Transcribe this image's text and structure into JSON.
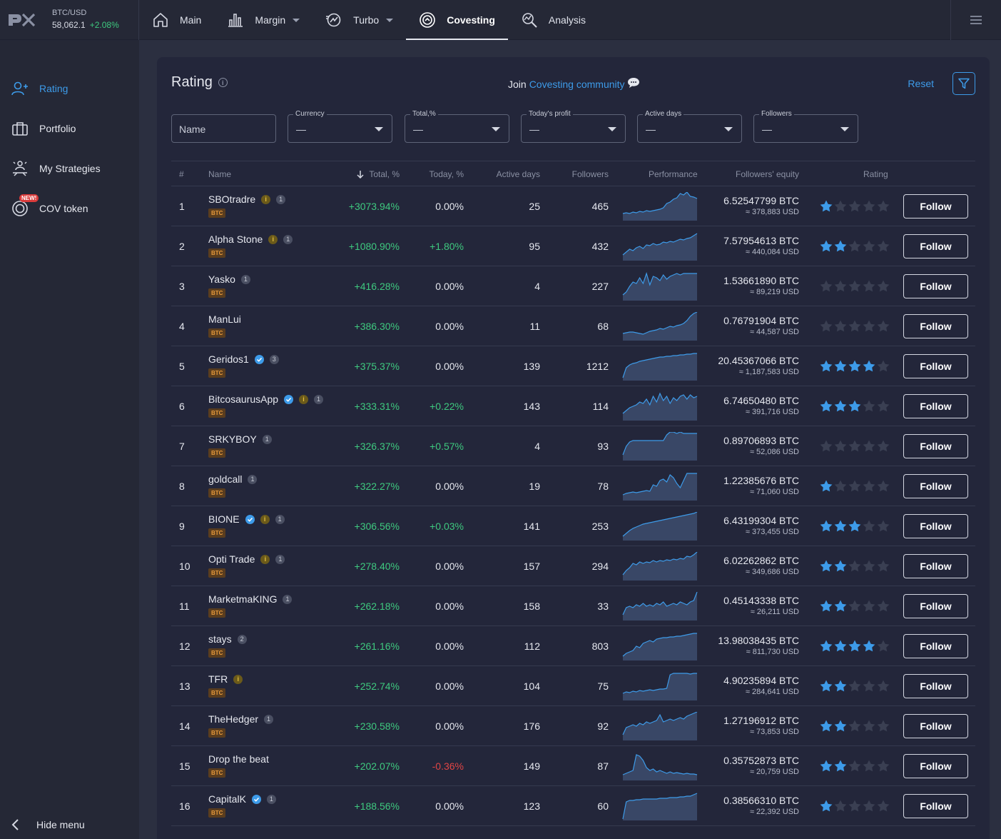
{
  "ticker": {
    "symbol": "BTC/USD",
    "price": "58,062.1",
    "change": "+2.08%"
  },
  "nav": [
    {
      "label": "Main",
      "icon": "home-icon",
      "caret": false,
      "active": false
    },
    {
      "label": "Margin",
      "icon": "bar-chart-icon",
      "caret": true,
      "active": false
    },
    {
      "label": "Turbo",
      "icon": "turbo-icon",
      "caret": true,
      "active": false
    },
    {
      "label": "Covesting",
      "icon": "covesting-icon",
      "caret": false,
      "active": true
    },
    {
      "label": "Analysis",
      "icon": "analysis-icon",
      "caret": false,
      "active": false
    }
  ],
  "sidebar": {
    "items": [
      {
        "label": "Rating",
        "icon": "user-rating-icon",
        "active": true
      },
      {
        "label": "Portfolio",
        "icon": "briefcase-icon",
        "active": false
      },
      {
        "label": "My Strategies",
        "icon": "strategies-icon",
        "active": false
      },
      {
        "label": "COV token",
        "icon": "cov-token-icon",
        "active": false,
        "badge": "NEW!"
      }
    ],
    "hide_label": "Hide menu"
  },
  "panel": {
    "title": "Rating",
    "join_text": "Join",
    "join_link": "Covesting community",
    "reset": "Reset"
  },
  "filters": {
    "name_placeholder": "Name",
    "selects": [
      {
        "label": "Currency",
        "value": "—"
      },
      {
        "label": "Total,%",
        "value": "—"
      },
      {
        "label": "Today's profit",
        "value": "—"
      },
      {
        "label": "Active days",
        "value": "—"
      },
      {
        "label": "Followers",
        "value": "—"
      }
    ]
  },
  "table": {
    "headers": {
      "rank": "#",
      "name": "Name",
      "total": "Total, %",
      "today": "Today, %",
      "days": "Active days",
      "followers": "Followers",
      "performance": "Performance",
      "equity": "Followers' equity",
      "rating": "Rating"
    },
    "follow_label": "Follow",
    "currency_tag": "BTC",
    "rows": [
      {
        "rank": "1",
        "name": "SBOtradre",
        "verified": false,
        "info": true,
        "count": "1",
        "total": "+3073.94%",
        "today": "0.00%",
        "today_sign": "zero",
        "days": "25",
        "followers": "465",
        "equity_btc": "6.52547799 BTC",
        "equity_usd": "≈ 378,883 USD",
        "stars": 1,
        "perf": [
          10,
          11,
          10,
          12,
          11,
          13,
          12,
          14,
          13,
          14,
          15,
          16,
          18,
          24,
          26,
          30,
          32,
          38,
          36,
          40,
          34,
          33,
          31
        ]
      },
      {
        "rank": "2",
        "name": "Alpha Stone",
        "verified": false,
        "info": true,
        "count": "1",
        "total": "+1080.90%",
        "today": "+1.80%",
        "today_sign": "pos",
        "days": "95",
        "followers": "432",
        "equity_btc": "7.57954613 BTC",
        "equity_usd": "≈ 440,084 USD",
        "stars": 2,
        "perf": [
          8,
          12,
          16,
          14,
          18,
          20,
          17,
          22,
          21,
          24,
          22,
          23,
          26,
          25,
          27,
          26,
          28,
          30,
          29,
          31,
          32,
          35,
          38
        ]
      },
      {
        "rank": "3",
        "name": "Yasko",
        "verified": false,
        "info": false,
        "count": "1",
        "total": "+416.28%",
        "today": "0.00%",
        "today_sign": "zero",
        "days": "4",
        "followers": "227",
        "equity_btc": "1.53661890 BTC",
        "equity_usd": "≈ 89,219 USD",
        "stars": 0,
        "perf": [
          8,
          12,
          20,
          26,
          24,
          32,
          24,
          38,
          22,
          34,
          32,
          28,
          36,
          30,
          34,
          36,
          38,
          36,
          38,
          38,
          38,
          38,
          38
        ]
      },
      {
        "rank": "4",
        "name": "ManLui",
        "verified": false,
        "info": false,
        "count": "",
        "total": "+386.30%",
        "today": "0.00%",
        "today_sign": "zero",
        "days": "11",
        "followers": "68",
        "equity_btc": "0.76791904 BTC",
        "equity_usd": "≈ 44,587 USD",
        "stars": 0,
        "perf": [
          10,
          11,
          12,
          12,
          11,
          10,
          9,
          11,
          13,
          14,
          15,
          17,
          16,
          18,
          20,
          19,
          21,
          22,
          24,
          28,
          34,
          38,
          40
        ]
      },
      {
        "rank": "5",
        "name": "Geridos1",
        "verified": true,
        "info": false,
        "count": "3",
        "total": "+375.37%",
        "today": "0.00%",
        "today_sign": "zero",
        "days": "139",
        "followers": "1212",
        "equity_btc": "20.45367066 BTC",
        "equity_usd": "≈ 1,187,583 USD",
        "stars": 4,
        "perf": [
          4,
          18,
          22,
          24,
          25,
          27,
          28,
          29,
          30,
          31,
          32,
          33,
          33,
          34,
          34,
          35,
          35,
          36,
          36,
          37,
          37,
          38,
          38
        ]
      },
      {
        "rank": "6",
        "name": "BitcosaurusApp",
        "verified": true,
        "info": true,
        "count": "1",
        "total": "+333.31%",
        "today": "+0.22%",
        "today_sign": "pos",
        "days": "143",
        "followers": "114",
        "equity_btc": "6.74650480 BTC",
        "equity_usd": "≈ 391,716 USD",
        "stars": 3,
        "perf": [
          10,
          14,
          18,
          20,
          22,
          26,
          24,
          30,
          22,
          34,
          26,
          38,
          28,
          34,
          24,
          32,
          28,
          34,
          36,
          30,
          36,
          32,
          34
        ]
      },
      {
        "rank": "7",
        "name": "SRKYBOY",
        "verified": false,
        "info": false,
        "count": "1",
        "total": "+326.37%",
        "today": "+0.57%",
        "today_sign": "pos",
        "days": "4",
        "followers": "93",
        "equity_btc": "0.89706893 BTC",
        "equity_usd": "≈ 52,086 USD",
        "stars": 0,
        "perf": [
          8,
          20,
          26,
          28,
          28,
          28,
          28,
          28,
          28,
          28,
          28,
          28,
          28,
          36,
          40,
          40,
          38,
          40,
          38,
          38,
          38,
          38,
          38
        ]
      },
      {
        "rank": "8",
        "name": "goldcall",
        "verified": false,
        "info": false,
        "count": "1",
        "total": "+322.27%",
        "today": "0.00%",
        "today_sign": "zero",
        "days": "19",
        "followers": "78",
        "equity_btc": "1.22385676 BTC",
        "equity_usd": "≈ 71,060 USD",
        "stars": 1,
        "perf": [
          8,
          10,
          11,
          12,
          11,
          12,
          13,
          14,
          13,
          22,
          20,
          28,
          30,
          26,
          36,
          32,
          24,
          18,
          28,
          38,
          38,
          38,
          38
        ]
      },
      {
        "rank": "9",
        "name": "BIONE",
        "verified": true,
        "info": true,
        "count": "1",
        "total": "+306.56%",
        "today": "+0.03%",
        "today_sign": "pos",
        "days": "141",
        "followers": "253",
        "equity_btc": "6.43199304 BTC",
        "equity_usd": "≈ 373,455 USD",
        "stars": 3,
        "perf": [
          6,
          10,
          14,
          17,
          19,
          21,
          23,
          24,
          25,
          26,
          27,
          28,
          29,
          30,
          31,
          32,
          33,
          34,
          35,
          36,
          37,
          38,
          40
        ]
      },
      {
        "rank": "10",
        "name": "Opti Trade",
        "verified": false,
        "info": true,
        "count": "1",
        "total": "+278.40%",
        "today": "0.00%",
        "today_sign": "zero",
        "days": "157",
        "followers": "294",
        "equity_btc": "6.02262862 BTC",
        "equity_usd": "≈ 349,686 USD",
        "stars": 2,
        "perf": [
          8,
          14,
          18,
          24,
          22,
          26,
          24,
          26,
          25,
          28,
          26,
          28,
          27,
          29,
          28,
          30,
          29,
          31,
          30,
          34,
          33,
          36,
          40
        ]
      },
      {
        "rank": "11",
        "name": "MarketmaKING",
        "verified": false,
        "info": false,
        "count": "1",
        "total": "+262.18%",
        "today": "0.00%",
        "today_sign": "zero",
        "days": "158",
        "followers": "33",
        "equity_btc": "0.45143338 BTC",
        "equity_usd": "≈ 26,211 USD",
        "stars": 2,
        "perf": [
          8,
          18,
          20,
          18,
          22,
          20,
          24,
          20,
          22,
          20,
          24,
          22,
          26,
          20,
          22,
          24,
          22,
          26,
          24,
          22,
          26,
          28,
          40
        ]
      },
      {
        "rank": "12",
        "name": "stays",
        "verified": false,
        "info": false,
        "count": "2",
        "total": "+261.16%",
        "today": "0.00%",
        "today_sign": "zero",
        "days": "112",
        "followers": "803",
        "equity_btc": "13.98038435 BTC",
        "equity_usd": "≈ 811,730 USD",
        "stars": 4,
        "perf": [
          6,
          10,
          12,
          14,
          20,
          18,
          24,
          26,
          28,
          26,
          30,
          31,
          32,
          32,
          33,
          33,
          34,
          34,
          35,
          36,
          37,
          38,
          38
        ]
      },
      {
        "rank": "13",
        "name": "TFR",
        "verified": false,
        "info": true,
        "count": "",
        "total": "+252.74%",
        "today": "0.00%",
        "today_sign": "zero",
        "days": "104",
        "followers": "75",
        "equity_btc": "4.90235894 BTC",
        "equity_usd": "≈ 284,641 USD",
        "stars": 2,
        "perf": [
          10,
          12,
          11,
          13,
          12,
          14,
          13,
          14,
          15,
          14,
          15,
          16,
          16,
          17,
          36,
          38,
          38,
          38,
          38,
          38,
          37,
          38,
          38
        ]
      },
      {
        "rank": "14",
        "name": "TheHedger",
        "verified": false,
        "info": false,
        "count": "1",
        "total": "+230.58%",
        "today": "0.00%",
        "today_sign": "zero",
        "days": "176",
        "followers": "92",
        "equity_btc": "1.27196912 BTC",
        "equity_usd": "≈ 73,853 USD",
        "stars": 2,
        "perf": [
          8,
          18,
          20,
          22,
          20,
          24,
          22,
          26,
          24,
          26,
          28,
          36,
          26,
          28,
          30,
          28,
          30,
          32,
          30,
          34,
          36,
          38,
          40
        ]
      },
      {
        "rank": "15",
        "name": "Drop the beat",
        "verified": false,
        "info": false,
        "count": "",
        "total": "+202.07%",
        "today": "-0.36%",
        "today_sign": "neg",
        "days": "149",
        "followers": "87",
        "equity_btc": "0.35752873 BTC",
        "equity_usd": "≈ 20,759 USD",
        "stars": 2,
        "perf": [
          8,
          10,
          12,
          14,
          36,
          34,
          28,
          18,
          14,
          16,
          12,
          14,
          12,
          10,
          12,
          10,
          11,
          10,
          9,
          10,
          9,
          9,
          8
        ]
      },
      {
        "rank": "16",
        "name": "CapitalK",
        "verified": true,
        "info": false,
        "count": "1",
        "total": "+188.56%",
        "today": "0.00%",
        "today_sign": "zero",
        "days": "123",
        "followers": "60",
        "equity_btc": "0.38566310 BTC",
        "equity_usd": "≈ 22,392 USD",
        "stars": 1,
        "perf": [
          2,
          26,
          28,
          28,
          29,
          29,
          30,
          30,
          30,
          30,
          30,
          31,
          31,
          31,
          32,
          32,
          32,
          33,
          33,
          34,
          34,
          36,
          38
        ]
      }
    ]
  },
  "colors": {
    "accent": "#3d9be9",
    "positive": "#3ec97f",
    "negative": "#e04545",
    "star_on": "#3d9be9",
    "star_off": "#3a3f52"
  }
}
